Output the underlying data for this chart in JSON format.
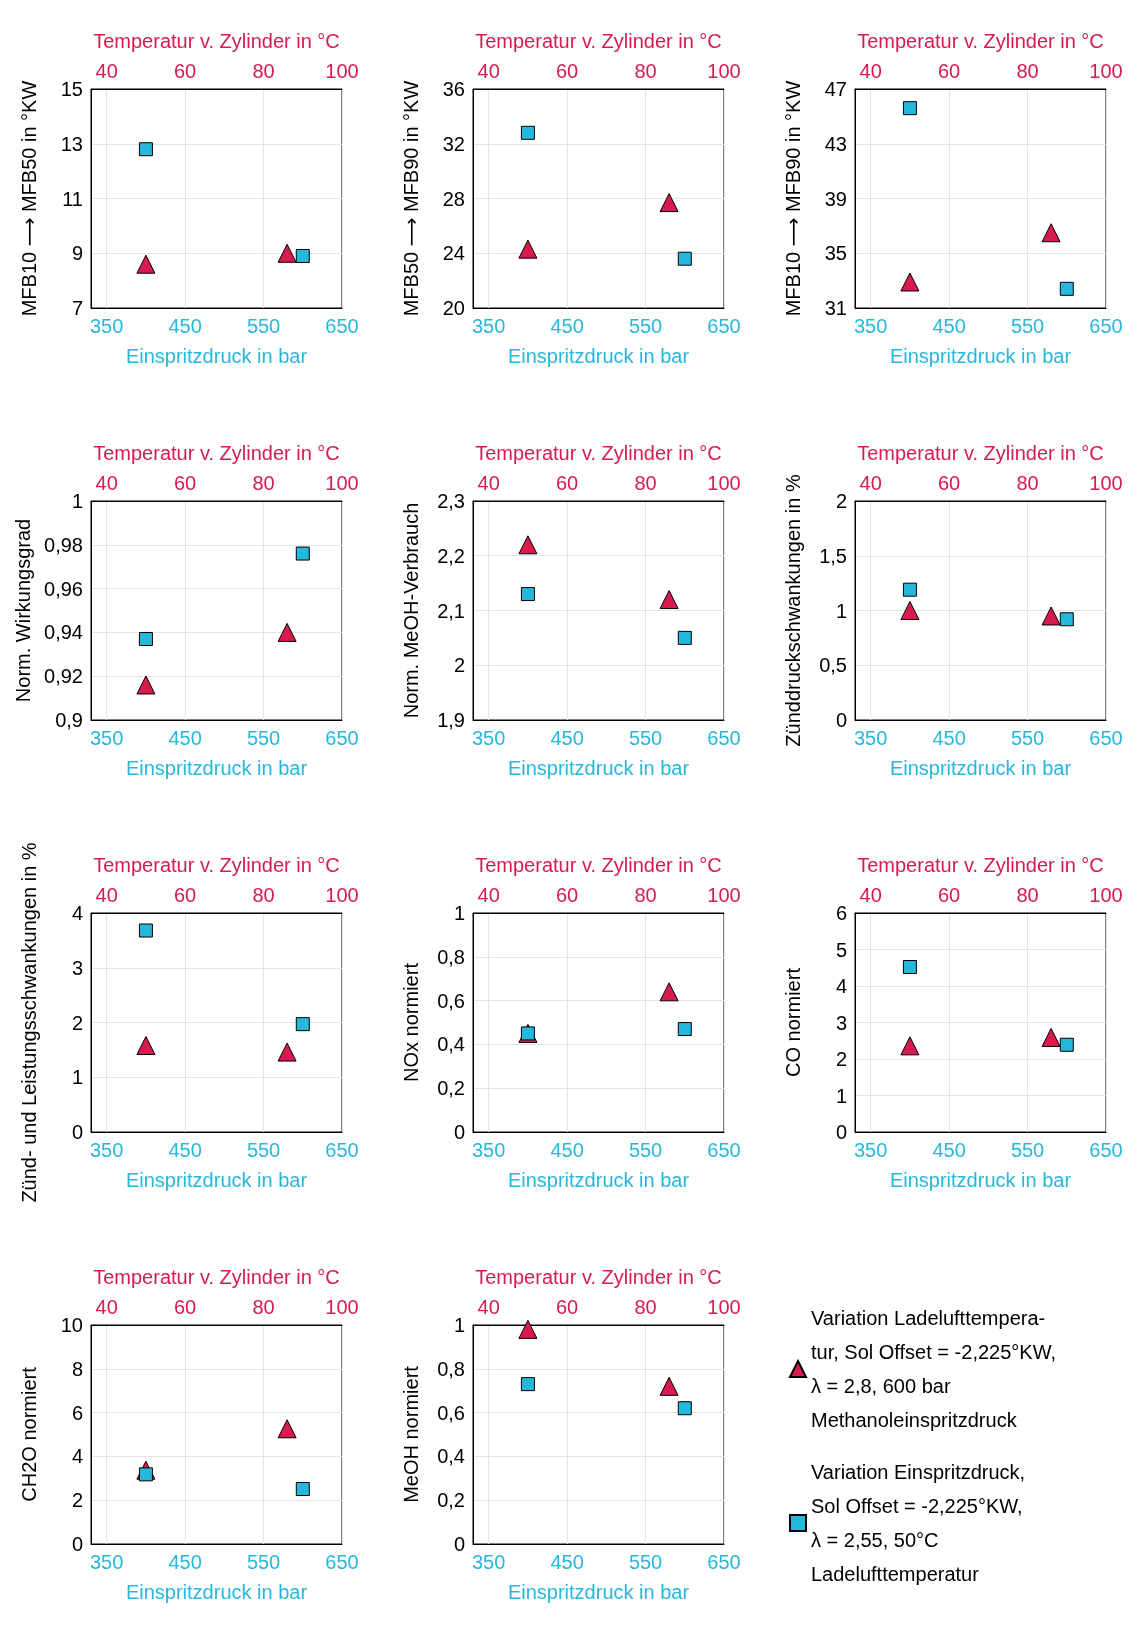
{
  "chart_data": [
    {
      "type": "scatter",
      "xlabel": "Einspritzdruck in bar",
      "x2label": "Temperatur v. Zylinder in °C",
      "ylabel": "MFB10 ⟶ MFB50 in °KW",
      "xlim": [
        330,
        650
      ],
      "xticks": [
        350,
        450,
        550,
        650
      ],
      "x2lim": [
        36,
        100
      ],
      "x2ticks": [
        40,
        60,
        80,
        100
      ],
      "ylim": [
        7,
        15
      ],
      "yticks": [
        7,
        9,
        11,
        13,
        15
      ],
      "grid": true,
      "series": [
        {
          "color": "#d81b4e",
          "marker": "triangle",
          "axis": "x2",
          "x": [
            50,
            86
          ],
          "values": [
            8.6,
            9.0
          ]
        },
        {
          "color": "#26b8dc",
          "marker": "square",
          "x": [
            400,
            600
          ],
          "values": [
            12.8,
            8.9
          ]
        }
      ]
    },
    {
      "type": "scatter",
      "xlabel": "Einspritzdruck in bar",
      "x2label": "Temperatur v. Zylinder in °C",
      "ylabel": "MFB50 ⟶ MFB90 in °KW",
      "xlim": [
        330,
        650
      ],
      "xticks": [
        350,
        450,
        550,
        650
      ],
      "x2lim": [
        36,
        100
      ],
      "x2ticks": [
        40,
        60,
        80,
        100
      ],
      "ylim": [
        20,
        36
      ],
      "yticks": [
        20,
        24,
        28,
        32,
        36
      ],
      "grid": true,
      "series": [
        {
          "color": "#d81b4e",
          "marker": "triangle",
          "axis": "x2",
          "x": [
            50,
            86
          ],
          "values": [
            24.3,
            27.7
          ]
        },
        {
          "color": "#26b8dc",
          "marker": "square",
          "x": [
            400,
            600
          ],
          "values": [
            32.8,
            23.6
          ]
        }
      ]
    },
    {
      "type": "scatter",
      "xlabel": "Einspritzdruck in bar",
      "x2label": "Temperatur v. Zylinder in °C",
      "ylabel": "MFB10 ⟶ MFB90 in °KW",
      "xlim": [
        330,
        650
      ],
      "xticks": [
        350,
        450,
        550,
        650
      ],
      "x2lim": [
        36,
        100
      ],
      "x2ticks": [
        40,
        60,
        80,
        100
      ],
      "ylim": [
        31,
        47
      ],
      "yticks": [
        31,
        35,
        39,
        43,
        47
      ],
      "grid": true,
      "series": [
        {
          "color": "#d81b4e",
          "marker": "triangle",
          "axis": "x2",
          "x": [
            50,
            86
          ],
          "values": [
            32.9,
            36.5
          ]
        },
        {
          "color": "#26b8dc",
          "marker": "square",
          "x": [
            400,
            600
          ],
          "values": [
            45.6,
            32.4
          ]
        }
      ]
    },
    {
      "type": "scatter",
      "xlabel": "Einspritzdruck in bar",
      "x2label": "Temperatur v. Zylinder in °C",
      "ylabel": "Norm. Wirkungsgrad",
      "xlim": [
        330,
        650
      ],
      "xticks": [
        350,
        450,
        550,
        650
      ],
      "x2lim": [
        36,
        100
      ],
      "x2ticks": [
        40,
        60,
        80,
        100
      ],
      "ylim": [
        0.9,
        1
      ],
      "yticks": [
        {
          "value": 0.9,
          "label": "0,9"
        },
        {
          "value": 0.92,
          "label": "0,92"
        },
        {
          "value": 0.94,
          "label": "0,94"
        },
        {
          "value": 0.96,
          "label": "0,96"
        },
        {
          "value": 0.98,
          "label": "0,98"
        },
        1
      ],
      "grid": true,
      "series": [
        {
          "color": "#d81b4e",
          "marker": "triangle",
          "axis": "x2",
          "x": [
            50,
            86
          ],
          "values": [
            0.916,
            0.94
          ]
        },
        {
          "color": "#26b8dc",
          "marker": "square",
          "x": [
            400,
            600
          ],
          "values": [
            0.937,
            0.976
          ]
        }
      ]
    },
    {
      "type": "scatter",
      "xlabel": "Einspritzdruck in bar",
      "x2label": "Temperatur v. Zylinder in °C",
      "ylabel": "Norm. MeOH-Verbrauch",
      "xlim": [
        330,
        650
      ],
      "xticks": [
        350,
        450,
        550,
        650
      ],
      "x2lim": [
        36,
        100
      ],
      "x2ticks": [
        40,
        60,
        80,
        100
      ],
      "ylim": [
        1.9,
        2.3
      ],
      "yticks": [
        {
          "value": 1.9,
          "label": "1,9"
        },
        2,
        {
          "value": 2.1,
          "label": "2,1"
        },
        {
          "value": 2.2,
          "label": "2,2"
        },
        {
          "value": 2.3,
          "label": "2,3"
        }
      ],
      "grid": true,
      "series": [
        {
          "color": "#d81b4e",
          "marker": "triangle",
          "axis": "x2",
          "x": [
            50,
            86
          ],
          "values": [
            2.22,
            2.12
          ]
        },
        {
          "color": "#26b8dc",
          "marker": "square",
          "x": [
            400,
            600
          ],
          "values": [
            2.13,
            2.05
          ]
        }
      ]
    },
    {
      "type": "scatter",
      "xlabel": "Einspritzdruck in bar",
      "x2label": "Temperatur v. Zylinder in °C",
      "ylabel": "Zünddruckschwankungen in %",
      "xlim": [
        330,
        650
      ],
      "xticks": [
        350,
        450,
        550,
        650
      ],
      "x2lim": [
        36,
        100
      ],
      "x2ticks": [
        40,
        60,
        80,
        100
      ],
      "ylim": [
        0,
        2
      ],
      "yticks": [
        0,
        {
          "value": 0.5,
          "label": "0,5"
        },
        1,
        {
          "value": 1.5,
          "label": "1,5"
        },
        2
      ],
      "grid": true,
      "series": [
        {
          "color": "#d81b4e",
          "marker": "triangle",
          "axis": "x2",
          "x": [
            50,
            86
          ],
          "values": [
            1.0,
            0.95
          ]
        },
        {
          "color": "#26b8dc",
          "marker": "square",
          "x": [
            400,
            600
          ],
          "values": [
            1.19,
            0.92
          ]
        }
      ]
    },
    {
      "type": "scatter",
      "xlabel": "Einspritzdruck in bar",
      "x2label": "Temperatur v. Zylinder in °C",
      "ylabel": "Zünd- und Leistungsschwankungen in %",
      "xlim": [
        330,
        650
      ],
      "xticks": [
        350,
        450,
        550,
        650
      ],
      "x2lim": [
        36,
        100
      ],
      "x2ticks": [
        40,
        60,
        80,
        100
      ],
      "ylim": [
        0,
        4
      ],
      "yticks": [
        0,
        1,
        2,
        3,
        4
      ],
      "grid": true,
      "series": [
        {
          "color": "#d81b4e",
          "marker": "triangle",
          "axis": "x2",
          "x": [
            50,
            86
          ],
          "values": [
            1.58,
            1.46
          ]
        },
        {
          "color": "#26b8dc",
          "marker": "square",
          "x": [
            400,
            600
          ],
          "values": [
            3.68,
            1.97
          ]
        }
      ]
    },
    {
      "type": "scatter",
      "xlabel": "Einspritzdruck in bar",
      "x2label": "Temperatur v. Zylinder in °C",
      "ylabel": "NOx normiert",
      "xlim": [
        330,
        650
      ],
      "xticks": [
        350,
        450,
        550,
        650
      ],
      "x2lim": [
        36,
        100
      ],
      "x2ticks": [
        40,
        60,
        80,
        100
      ],
      "ylim": [
        0,
        1
      ],
      "yticks": [
        0,
        {
          "value": 0.2,
          "label": "0,2"
        },
        {
          "value": 0.4,
          "label": "0,4"
        },
        {
          "value": 0.6,
          "label": "0,6"
        },
        {
          "value": 0.8,
          "label": "0,8"
        },
        1
      ],
      "grid": true,
      "series": [
        {
          "color": "#d81b4e",
          "marker": "triangle",
          "axis": "x2",
          "x": [
            50,
            86
          ],
          "values": [
            0.45,
            0.64
          ]
        },
        {
          "color": "#26b8dc",
          "marker": "square",
          "x": [
            400,
            600
          ],
          "values": [
            0.45,
            0.47
          ]
        }
      ]
    },
    {
      "type": "scatter",
      "xlabel": "Einspritzdruck in bar",
      "x2label": "Temperatur v. Zylinder in °C",
      "ylabel": "CO normiert",
      "xlim": [
        330,
        650
      ],
      "xticks": [
        350,
        450,
        550,
        650
      ],
      "x2lim": [
        36,
        100
      ],
      "x2ticks": [
        40,
        60,
        80,
        100
      ],
      "ylim": [
        0,
        6
      ],
      "yticks": [
        0,
        1,
        2,
        3,
        4,
        5,
        6
      ],
      "grid": true,
      "series": [
        {
          "color": "#d81b4e",
          "marker": "triangle",
          "axis": "x2",
          "x": [
            50,
            86
          ],
          "values": [
            2.36,
            2.59
          ]
        },
        {
          "color": "#26b8dc",
          "marker": "square",
          "x": [
            400,
            600
          ],
          "values": [
            4.52,
            2.39
          ]
        }
      ]
    },
    {
      "type": "scatter",
      "xlabel": "Einspritzdruck in bar",
      "x2label": "Temperatur v. Zylinder in °C",
      "ylabel": "CH2O normiert",
      "xlim": [
        330,
        650
      ],
      "xticks": [
        350,
        450,
        550,
        650
      ],
      "x2lim": [
        36,
        100
      ],
      "x2ticks": [
        40,
        60,
        80,
        100
      ],
      "ylim": [
        0,
        10
      ],
      "yticks": [
        0,
        2,
        4,
        6,
        8,
        10
      ],
      "grid": true,
      "series": [
        {
          "color": "#d81b4e",
          "marker": "triangle",
          "axis": "x2",
          "x": [
            50,
            86
          ],
          "values": [
            3.37,
            5.26
          ]
        },
        {
          "color": "#26b8dc",
          "marker": "square",
          "x": [
            400,
            600
          ],
          "values": [
            3.18,
            2.51
          ]
        }
      ]
    },
    {
      "type": "scatter",
      "xlabel": "Einspritzdruck in bar",
      "x2label": "Temperatur v. Zylinder in °C",
      "ylabel": "MeOH normiert",
      "xlim": [
        330,
        650
      ],
      "xticks": [
        350,
        450,
        550,
        650
      ],
      "x2lim": [
        36,
        100
      ],
      "x2ticks": [
        40,
        60,
        80,
        100
      ],
      "ylim": [
        0,
        1
      ],
      "yticks": [
        0,
        {
          "value": 0.2,
          "label": "0,2"
        },
        {
          "value": 0.4,
          "label": "0,4"
        },
        {
          "value": 0.6,
          "label": "0,6"
        },
        {
          "value": 0.8,
          "label": "0,8"
        },
        1
      ],
      "grid": true,
      "legend": "right",
      "series": [
        {
          "name": "Variation Ladelufttempera-\ntur, Sol Offset = -2,225°KW,\nλ = 2,8, 600 bar\nMethanoleinspritzdruck",
          "color": "#d81b4e",
          "marker": "triangle",
          "axis": "x2",
          "x": [
            50,
            86
          ],
          "values": [
            0.98,
            0.72
          ]
        },
        {
          "name": "Variation Einspritzdruck,\nSol Offset = -2,225°KW,\nλ = 2,55, 50°C\nLadelufttemperatur",
          "color": "#26b8dc",
          "marker": "square",
          "x": [
            400,
            600
          ],
          "values": [
            0.73,
            0.62
          ]
        }
      ]
    }
  ]
}
